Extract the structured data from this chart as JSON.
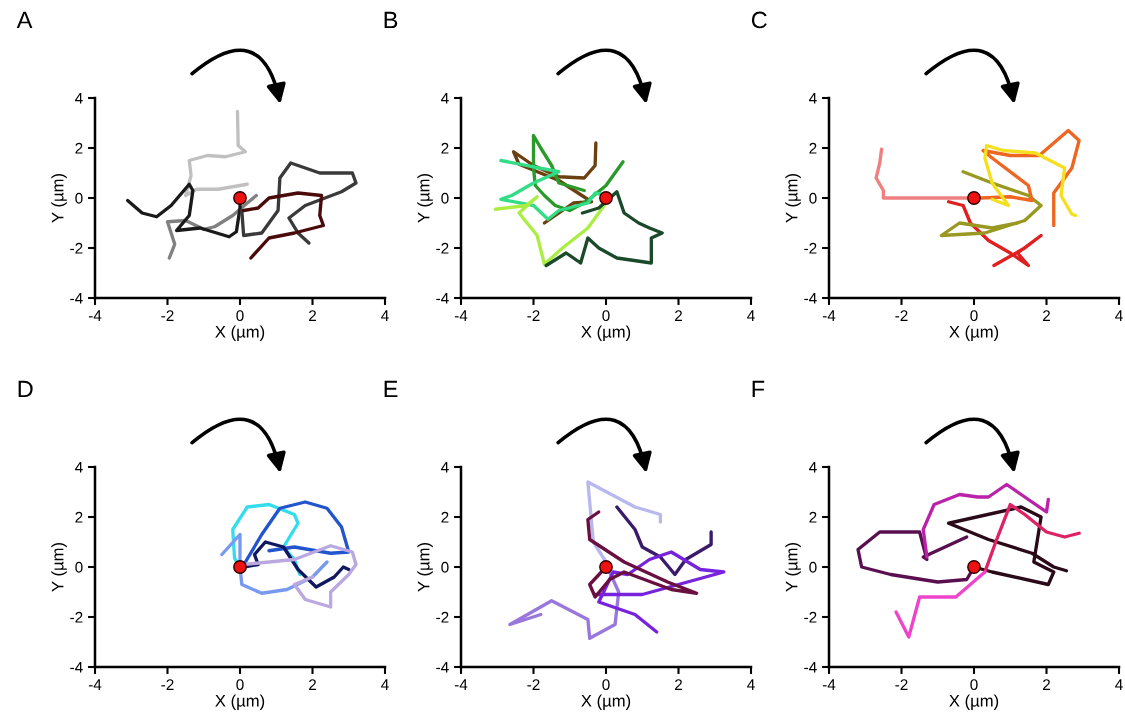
{
  "chart_data": [
    {
      "type": "line",
      "title": "A",
      "xlabel": "X (µm)",
      "ylabel": "Y (µm)",
      "xlim": [
        -4,
        4
      ],
      "ylim": [
        -4,
        4
      ],
      "xticks": [
        -4,
        -2,
        0,
        2,
        4
      ],
      "yticks": [
        -4,
        -2,
        0,
        2,
        4
      ],
      "series": [
        {
          "color": "#c0c0c0",
          "x": [
            -0.07,
            -0.05,
            0.15,
            -0.4,
            -0.9,
            -1.4,
            -1.35,
            -1.5,
            -1.2,
            -0.6,
            0.2
          ],
          "values": [
            3.46,
            2.1,
            1.85,
            1.65,
            1.7,
            1.5,
            0.9,
            0.1,
            0.35,
            0.35,
            0.55
          ]
        },
        {
          "color": "#808080",
          "x": [
            -1.95,
            -1.8,
            -2.0,
            -1.5,
            -1.0,
            -0.7,
            -0.2,
            0.2,
            0.45
          ],
          "values": [
            -2.4,
            -1.85,
            -0.95,
            -0.9,
            -1.25,
            -1.15,
            -0.7,
            -0.2,
            0.1
          ]
        },
        {
          "color": "#1a1a1a",
          "x": [
            -3.1,
            -2.7,
            -2.3,
            -1.9,
            -1.4,
            -1.3,
            -1.4,
            -1.75,
            -1.1,
            -0.3,
            -0.1,
            0.0,
            0.0
          ],
          "values": [
            -0.1,
            -0.6,
            -0.75,
            -0.3,
            0.55,
            0.3,
            -0.7,
            -1.3,
            -1.2,
            -1.55,
            -1.35,
            -0.4,
            0.0
          ]
        },
        {
          "color": "#3a3a3a",
          "x": [
            0.05,
            0.1,
            0.6,
            1.05,
            1.1,
            1.4,
            2.2,
            3.1,
            3.2,
            2.8,
            1.8,
            1.35,
            1.6,
            1.9
          ],
          "values": [
            -0.5,
            -1.5,
            -1.4,
            -0.5,
            0.8,
            1.4,
            1.0,
            1.0,
            0.6,
            0.25,
            -0.3,
            -0.8,
            -1.4,
            -1.8
          ]
        },
        {
          "color": "#4a0a0a",
          "x": [
            0.1,
            0.5,
            0.8,
            1.6,
            2.25,
            2.2,
            2.3,
            1.5,
            0.8,
            0.3
          ],
          "values": [
            -0.5,
            -0.4,
            0.0,
            0.2,
            0.1,
            -0.7,
            -1.1,
            -1.4,
            -1.6,
            -2.4
          ]
        },
        {
          "type": "scatter",
          "color": "#ee1111",
          "x": [
            0
          ],
          "values": [
            0
          ]
        }
      ]
    },
    {
      "type": "line",
      "title": "B",
      "xlabel": "X (µm)",
      "ylabel": "Y (µm)",
      "xlim": [
        -4,
        4
      ],
      "ylim": [
        -4,
        4
      ],
      "xticks": [
        -4,
        -2,
        0,
        2,
        4
      ],
      "yticks": [
        -4,
        -2,
        0,
        2,
        4
      ],
      "series": [
        {
          "color": "#6b3f10",
          "x": [
            -0.28,
            -0.3,
            -0.6,
            -1.3,
            -2.0,
            -2.55,
            -2.4,
            -1.3,
            -0.4,
            -0.9,
            -1.7
          ],
          "values": [
            2.2,
            1.3,
            0.8,
            0.85,
            1.3,
            1.85,
            1.35,
            0.7,
            -0.15,
            -0.2,
            -1.0
          ]
        },
        {
          "color": "#2a9a2a",
          "x": [
            0.47,
            0.0,
            -0.5,
            -1.0,
            -1.4,
            -1.7,
            -1.95,
            -2.0,
            -2.0,
            -1.8,
            -1.5,
            -1.3,
            -0.6
          ],
          "values": [
            1.45,
            0.5,
            -0.1,
            -0.5,
            -0.3,
            0.1,
            0.5,
            1.2,
            2.5,
            2.0,
            1.3,
            0.6,
            0.3
          ]
        },
        {
          "color": "#33dd88",
          "x": [
            -2.9,
            -1.3,
            -2.0,
            -2.6,
            -2.9,
            -2.0,
            -1.6,
            -1.3,
            -0.5,
            -0.3,
            0.05
          ],
          "values": [
            1.5,
            1.05,
            0.6,
            0.1,
            -0.05,
            -0.3,
            -0.85,
            -0.5,
            -0.2,
            0.2,
            0.1
          ]
        },
        {
          "color": "#aaee44",
          "x": [
            -3.05,
            -2.2,
            -1.9,
            -2.4,
            -1.9,
            -1.7,
            -1.2,
            -0.5,
            0.0
          ],
          "values": [
            -0.45,
            -0.3,
            0.05,
            -0.6,
            -1.5,
            -2.65,
            -2.0,
            -1.2,
            -0.2
          ]
        },
        {
          "color": "#1a4a2a",
          "x": [
            -0.65,
            -0.2,
            0.3,
            0.5,
            0.9,
            1.2,
            1.55,
            1.25,
            1.25,
            0.3,
            -0.2,
            -0.5,
            -0.7,
            -1.1,
            -1.65
          ],
          "values": [
            -0.6,
            -0.4,
            0.25,
            -0.6,
            -1.0,
            -1.2,
            -1.4,
            -1.6,
            -2.6,
            -2.4,
            -2.0,
            -1.6,
            -2.6,
            -2.2,
            -2.7
          ]
        },
        {
          "type": "scatter",
          "color": "#ee1111",
          "x": [
            0
          ],
          "values": [
            0
          ]
        }
      ]
    },
    {
      "type": "line",
      "title": "C",
      "xlabel": "X (µm)",
      "ylabel": "Y (µm)",
      "xlim": [
        -4,
        4
      ],
      "ylim": [
        -4,
        4
      ],
      "xticks": [
        -4,
        -2,
        0,
        2,
        4
      ],
      "yticks": [
        -4,
        -2,
        0,
        2,
        4
      ],
      "series": [
        {
          "color": "#f08080",
          "x": [
            -2.55,
            -2.6,
            -2.7,
            -2.5,
            -2.5,
            -1.5,
            -0.5,
            0.0
          ],
          "values": [
            1.95,
            1.4,
            0.8,
            0.3,
            0.0,
            0.0,
            0.0,
            0.0
          ]
        },
        {
          "color": "#e02020",
          "x": [
            -0.7,
            -0.3,
            -0.1,
            0.4,
            1.0,
            1.5,
            1.2,
            1.85,
            1.4,
            0.55
          ],
          "values": [
            -0.15,
            -0.3,
            -1.0,
            -1.7,
            -2.2,
            -2.7,
            -2.2,
            -1.5,
            -2.0,
            -2.7
          ]
        },
        {
          "color": "#999922",
          "x": [
            -0.3,
            0.5,
            1.5,
            1.85,
            1.4,
            0.3,
            -0.9,
            -0.4,
            0.5,
            1.2
          ],
          "values": [
            1.05,
            0.6,
            0.1,
            -0.3,
            -0.9,
            -1.4,
            -1.5,
            -1.0,
            -1.2,
            -1.0
          ]
        },
        {
          "color": "#ee6622",
          "x": [
            0.2,
            1.0,
            1.6,
            1.5,
            0.5,
            0.25,
            1.0,
            1.8,
            2.6,
            2.9,
            2.7,
            2.2,
            2.2
          ],
          "values": [
            0.0,
            0.05,
            -0.1,
            0.5,
            1.6,
            1.9,
            1.7,
            1.7,
            2.7,
            2.3,
            1.2,
            0.2,
            -1.1
          ]
        },
        {
          "color": "#f5e020",
          "x": [
            0.5,
            0.95,
            0.5,
            0.3,
            0.35,
            0.8,
            1.7,
            2.5,
            2.4,
            2.7,
            2.8
          ],
          "values": [
            -0.05,
            -0.3,
            0.6,
            1.6,
            2.1,
            1.9,
            1.8,
            1.2,
            0.1,
            -0.65,
            -0.7
          ]
        },
        {
          "type": "scatter",
          "color": "#ee1111",
          "x": [
            0
          ],
          "values": [
            0
          ]
        }
      ]
    },
    {
      "type": "line",
      "title": "D",
      "xlabel": "X (µm)",
      "ylabel": "Y (µm)",
      "xlim": [
        -4,
        4
      ],
      "ylim": [
        -4,
        4
      ],
      "xticks": [
        -4,
        -2,
        0,
        2,
        4
      ],
      "yticks": [
        -4,
        -2,
        0,
        2,
        4
      ],
      "series": [
        {
          "color": "#33ddee",
          "x": [
            0.0,
            -0.15,
            -0.2,
            0.2,
            0.8,
            1.5,
            1.6,
            1.2,
            1.5,
            1.65
          ],
          "values": [
            0.0,
            0.35,
            1.5,
            2.4,
            2.5,
            2.1,
            1.75,
            0.8,
            0.3,
            -0.3
          ]
        },
        {
          "color": "#2255cc",
          "x": [
            0.15,
            0.6,
            1.1,
            1.8,
            2.4,
            2.8,
            3.0,
            2.5,
            1.5,
            0.8
          ],
          "values": [
            0.2,
            1.3,
            2.35,
            2.6,
            2.35,
            1.6,
            0.6,
            0.55,
            0.8,
            0.65
          ]
        },
        {
          "color": "#7799ee",
          "x": [
            -0.5,
            0.0,
            0.0,
            0.05,
            0.6,
            1.3,
            2.0,
            2.4
          ],
          "values": [
            0.5,
            1.3,
            0.0,
            -0.7,
            -1.05,
            -0.9,
            -0.4,
            0.2
          ]
        },
        {
          "color": "#101860",
          "x": [
            0.1,
            0.5,
            0.4,
            0.7,
            1.2,
            1.6,
            2.1,
            2.6,
            2.85,
            3.0
          ],
          "values": [
            0.0,
            0.1,
            0.5,
            1.0,
            0.8,
            -0.1,
            -0.8,
            -0.4,
            0.0,
            -0.1
          ]
        },
        {
          "color": "#bba8e0",
          "x": [
            0.1,
            1.5,
            2.5,
            3.1,
            3.2,
            3.0,
            2.5,
            2.5,
            1.8,
            1.5,
            2.0
          ],
          "values": [
            0.1,
            0.3,
            0.85,
            0.6,
            0.1,
            -0.3,
            -1.0,
            -1.6,
            -1.3,
            -0.7,
            -0.4
          ]
        },
        {
          "type": "scatter",
          "color": "#ee1111",
          "x": [
            0
          ],
          "values": [
            0
          ]
        }
      ]
    },
    {
      "type": "line",
      "title": "E",
      "xlabel": "X (µm)",
      "ylabel": "Y (µm)",
      "xlim": [
        -4,
        4
      ],
      "ylim": [
        -4,
        4
      ],
      "xticks": [
        -4,
        -2,
        0,
        2,
        4
      ],
      "yticks": [
        -4,
        -2,
        0,
        2,
        4
      ],
      "series": [
        {
          "color": "#b8b8ee",
          "x": [
            1.5,
            1.5,
            0.8,
            -0.5,
            -0.35,
            0.0
          ],
          "values": [
            1.8,
            2.1,
            2.4,
            3.4,
            1.0,
            0.2
          ]
        },
        {
          "color": "#9977dd",
          "x": [
            -1.8,
            -2.65,
            -1.5,
            -0.5,
            -0.45,
            0.25,
            0.35,
            0.1
          ],
          "values": [
            -1.9,
            -2.3,
            -1.35,
            -2.1,
            -2.85,
            -2.3,
            -1.0,
            -0.2
          ]
        },
        {
          "color": "#3a1a6a",
          "x": [
            0.3,
            0.8,
            1.0,
            1.5,
            1.9,
            2.2,
            2.9,
            2.9
          ],
          "values": [
            2.4,
            1.5,
            0.8,
            0.4,
            -0.3,
            0.3,
            0.9,
            1.4
          ]
        },
        {
          "color": "#7722dd",
          "x": [
            -0.3,
            1.0,
            2.0,
            3.25,
            2.6,
            1.8,
            1.2,
            0.6,
            0.2,
            -0.2,
            0.8,
            1.4
          ],
          "values": [
            -1.1,
            -1.1,
            -0.7,
            -0.2,
            -0.1,
            0.6,
            0.3,
            -0.3,
            -0.2,
            -1.4,
            -1.9,
            -2.6
          ]
        },
        {
          "color": "#6a1040",
          "x": [
            -0.2,
            -0.5,
            -0.45,
            0.5,
            1.7,
            2.5,
            1.8,
            0.5,
            0.1,
            -0.3,
            -0.45,
            0.0
          ],
          "values": [
            2.2,
            1.9,
            1.1,
            0.2,
            -0.6,
            -1.05,
            -0.9,
            -0.2,
            -0.5,
            -1.2,
            -0.7,
            0.0
          ]
        },
        {
          "type": "scatter",
          "color": "#ee1111",
          "x": [
            0
          ],
          "values": [
            0
          ]
        }
      ]
    },
    {
      "type": "line",
      "title": "F",
      "xlabel": "X (µm)",
      "ylabel": "Y (µm)",
      "xlim": [
        -4,
        4
      ],
      "ylim": [
        -4,
        4
      ],
      "xticks": [
        -4,
        -2,
        0,
        2,
        4
      ],
      "yticks": [
        -4,
        -2,
        0,
        2,
        4
      ],
      "series": [
        {
          "color": "#5a1050",
          "x": [
            -0.2,
            -1.4,
            -1.3,
            -1.5,
            -2.6,
            -3.2,
            -3.1,
            -2.3,
            -1.0,
            -0.2,
            0.0
          ],
          "values": [
            1.2,
            0.4,
            0.3,
            1.4,
            1.4,
            0.7,
            0.0,
            -0.3,
            -0.6,
            -0.5,
            0.0
          ]
        },
        {
          "color": "#2a0a18",
          "x": [
            2.55,
            2.2,
            1.6,
            0.4,
            -0.7,
            1.3,
            1.85,
            1.65,
            2.2,
            2.05,
            0.5,
            0.0
          ],
          "values": [
            -0.15,
            0.0,
            0.55,
            1.1,
            1.75,
            2.4,
            2.0,
            0.2,
            -0.2,
            -0.7,
            -0.2,
            0.0
          ]
        },
        {
          "color": "#bb22aa",
          "x": [
            -1.3,
            -1.4,
            -1.1,
            -0.4,
            0.1,
            0.4,
            0.9,
            1.3,
            2.0,
            2.05
          ],
          "values": [
            0.4,
            1.5,
            2.5,
            2.9,
            2.8,
            2.8,
            3.3,
            2.9,
            2.2,
            2.7
          ]
        },
        {
          "color": "#dd2266",
          "x": [
            0.3,
            0.6,
            1.0,
            1.4,
            2.0,
            2.5,
            2.9
          ],
          "values": [
            -0.2,
            1.0,
            2.5,
            2.1,
            1.4,
            1.2,
            1.35
          ]
        },
        {
          "color": "#ee44cc",
          "x": [
            0.3,
            -0.5,
            -1.5,
            -1.8,
            -2.15
          ],
          "values": [
            -0.2,
            -1.2,
            -1.2,
            -2.8,
            -1.8
          ]
        },
        {
          "type": "scatter",
          "color": "#ee1111",
          "x": [
            0
          ],
          "values": [
            0
          ]
        }
      ]
    }
  ]
}
